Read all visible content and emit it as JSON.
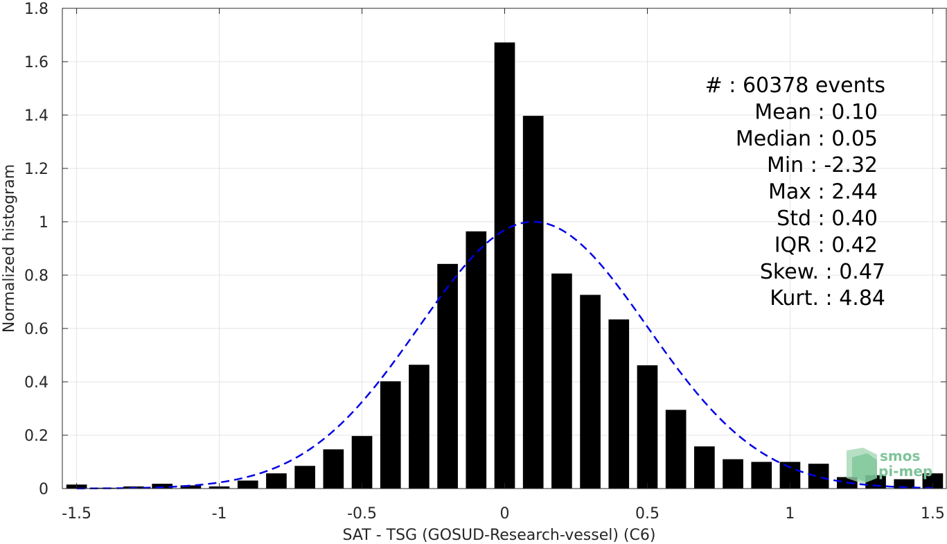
{
  "chart_data": {
    "type": "bar",
    "xlabel": "SAT - TSG (GOSUD-Research-vessel) (C6)",
    "ylabel": "Normalized histogram",
    "xlim": [
      -1.55,
      1.55
    ],
    "ylim": [
      0,
      1.8
    ],
    "xticks": [
      -1.5,
      -1,
      -0.5,
      0,
      0.5,
      1,
      1.5
    ],
    "xtick_labels": [
      "-1.5",
      "-1",
      "-0.5",
      "0",
      "0.5",
      "1",
      "1.5"
    ],
    "yticks": [
      0,
      0.2,
      0.4,
      0.6,
      0.8,
      1,
      1.2,
      1.4,
      1.6,
      1.8
    ],
    "ytick_labels": [
      "0",
      "0.2",
      "0.4",
      "0.6",
      "0.8",
      "1",
      "1.2",
      "1.4",
      "1.6",
      "1.8"
    ],
    "grid": true,
    "bar_width": 0.072,
    "bars": {
      "x": [
        -1.5,
        -1.4,
        -1.3,
        -1.2,
        -1.1,
        -1.0,
        -0.9,
        -0.8,
        -0.7,
        -0.6,
        -0.5,
        -0.4,
        -0.3,
        -0.2,
        -0.1,
        0.0,
        0.1,
        0.2,
        0.3,
        0.4,
        0.5,
        0.6,
        0.7,
        0.8,
        0.9,
        1.0,
        1.1,
        1.2,
        1.3,
        1.4,
        1.5
      ],
      "values": [
        0.015,
        0.003,
        0.008,
        0.018,
        0.012,
        0.008,
        0.03,
        0.057,
        0.085,
        0.147,
        0.197,
        0.402,
        0.464,
        0.842,
        0.964,
        1.672,
        1.397,
        0.806,
        0.726,
        0.634,
        0.462,
        0.295,
        0.158,
        0.11,
        0.1,
        0.1,
        0.093,
        0.043,
        0.05,
        0.035,
        0.057
      ],
      "color": "#000000"
    },
    "fit": {
      "type": "gaussian",
      "mean": 0.1,
      "std": 0.4,
      "peak": 1.0,
      "color": "#0000e6",
      "style": "dashed",
      "x_range": [
        -1.5,
        1.5
      ]
    },
    "annotations": [
      "#  : 60378 events",
      "Mean : 0.10",
      "Median : 0.05",
      "Min : -2.32",
      "Max : 2.44",
      "Std : 0.40",
      "IQR : 0.42",
      "Skew. : 0.47",
      "Kurt. : 4.84"
    ],
    "logo": [
      "smos",
      "pi-mep"
    ]
  }
}
